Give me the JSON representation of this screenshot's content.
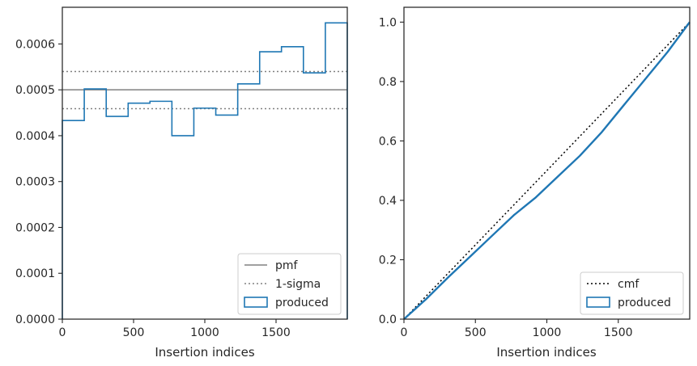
{
  "chart_data": [
    {
      "type": "step",
      "panel": "left",
      "xlabel": "Insertion indices",
      "ylabel": "",
      "xlim": [
        0,
        2000
      ],
      "ylim": [
        0,
        0.00068
      ],
      "xticks": [
        0,
        500,
        1000,
        1500
      ],
      "xtick_labels": [
        "0",
        "500",
        "1000",
        "1500"
      ],
      "yticks": [
        0,
        0.0001,
        0.0002,
        0.0003,
        0.0004,
        0.0005,
        0.0006
      ],
      "ytick_labels": [
        "0.0000",
        "0.0001",
        "0.0002",
        "0.0003",
        "0.0004",
        "0.0005",
        "0.0006"
      ],
      "pmf": 0.0005,
      "sigma_band": [
        0.000459,
        0.00054
      ],
      "bin_edges": [
        0,
        154,
        308,
        462,
        615,
        769,
        923,
        1077,
        1231,
        1385,
        1538,
        1692,
        1846,
        2000
      ],
      "produced": [
        0.000433,
        0.000502,
        0.000442,
        0.000471,
        0.000475,
        0.0004,
        0.00046,
        0.000445,
        0.000513,
        0.000583,
        0.000594,
        0.000537,
        0.000646
      ],
      "legend": {
        "location": "lower right",
        "entries": [
          {
            "label": "pmf",
            "style": "solid",
            "color": "#808080"
          },
          {
            "label": "1-sigma",
            "style": "dotted",
            "color": "#808080"
          },
          {
            "label": "produced",
            "style": "patch",
            "color": "#1f77b4"
          }
        ]
      },
      "colors": {
        "produced": "#1f77b4",
        "reference": "#808080"
      }
    },
    {
      "type": "line",
      "panel": "right",
      "xlabel": "Insertion indices",
      "ylabel": "",
      "xlim": [
        0,
        2000
      ],
      "ylim": [
        0,
        1.05
      ],
      "xticks": [
        0,
        500,
        1000,
        1500
      ],
      "xtick_labels": [
        "0",
        "500",
        "1000",
        "1500"
      ],
      "yticks": [
        0,
        0.2,
        0.4,
        0.6,
        0.8,
        1.0
      ],
      "ytick_labels": [
        "0.0",
        "0.2",
        "0.4",
        "0.6",
        "0.8",
        "1.0"
      ],
      "cmf": {
        "x": [
          0,
          2000
        ],
        "y": [
          0,
          1.0
        ]
      },
      "produced": {
        "x": [
          0,
          154,
          308,
          462,
          615,
          769,
          923,
          1077,
          1231,
          1385,
          1538,
          1692,
          1846,
          2000
        ],
        "y": [
          0,
          0.067,
          0.14,
          0.21,
          0.28,
          0.35,
          0.41,
          0.48,
          0.55,
          0.63,
          0.72,
          0.81,
          0.9,
          1.0
        ]
      },
      "legend": {
        "location": "lower right",
        "entries": [
          {
            "label": "cmf",
            "style": "dotted",
            "color": "#000000"
          },
          {
            "label": "produced",
            "style": "patch",
            "color": "#1f77b4"
          }
        ]
      },
      "colors": {
        "produced": "#1f77b4",
        "reference": "#000000"
      }
    }
  ]
}
